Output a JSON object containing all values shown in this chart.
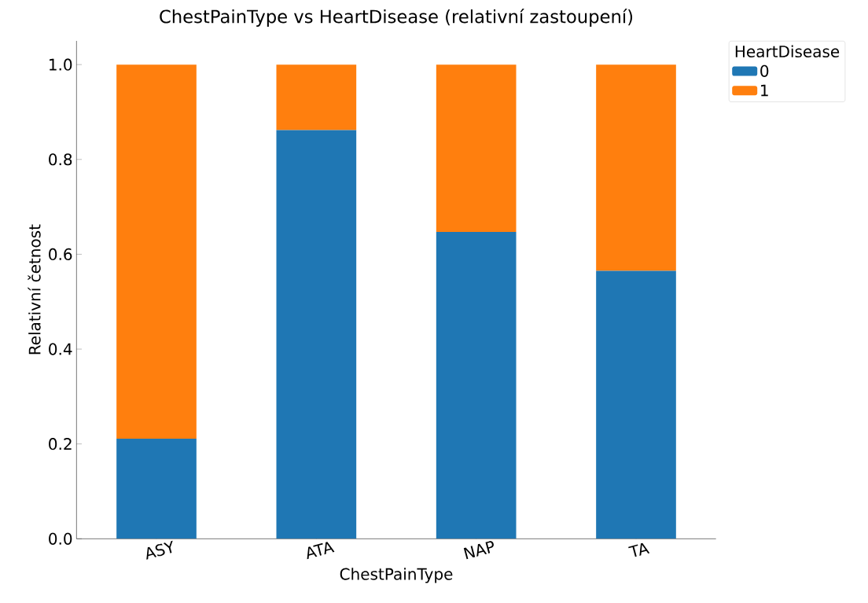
{
  "chart_data": {
    "type": "bar",
    "stacked": true,
    "title": "ChestPainType vs HeartDisease (relativní zastoupení)",
    "xlabel": "ChestPainType",
    "ylabel": "Relativní četnost",
    "legend_title": "HeartDisease",
    "categories": [
      "ASY",
      "ATA",
      "NAP",
      "TA"
    ],
    "series": [
      {
        "name": "0",
        "color": "#1f77b4",
        "values": [
          0.211,
          0.862,
          0.647,
          0.565
        ]
      },
      {
        "name": "1",
        "color": "#ff7f0e",
        "values": [
          0.789,
          0.138,
          0.353,
          0.435
        ]
      }
    ],
    "ylim": [
      0,
      1.05
    ],
    "yticks": [
      {
        "value": 0,
        "label": "0.0"
      },
      0.2,
      0.4,
      0.6,
      0.8,
      {
        "value": 1,
        "label": "1.0"
      }
    ],
    "grid": false,
    "legend": "right"
  }
}
